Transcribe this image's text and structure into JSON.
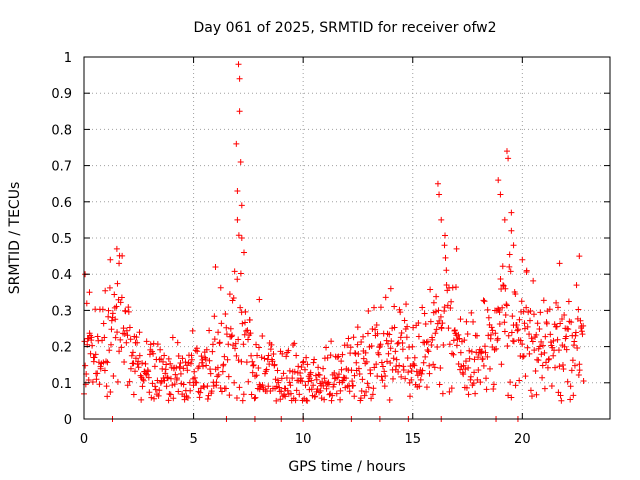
{
  "chart_data": {
    "type": "scatter",
    "title": "Day 061 of 2025, SRMTID for receiver ofw2",
    "xlabel": "GPS time / hours",
    "ylabel": "SRMTID / TECUs",
    "xlim": [
      0,
      24
    ],
    "ylim": [
      0,
      1
    ],
    "xticks": [
      "0",
      "5",
      "10",
      "15",
      "20"
    ],
    "xtick_values": [
      0,
      5,
      10,
      15,
      20
    ],
    "yticks": [
      "0",
      "0.1",
      "0.2",
      "0.3",
      "0.4",
      "0.5",
      "0.6",
      "0.7",
      "0.8",
      "0.9",
      "1"
    ],
    "ytick_values": [
      0,
      0.1,
      0.2,
      0.3,
      0.4,
      0.5,
      0.6,
      0.7,
      0.8,
      0.9,
      1
    ],
    "grid": true,
    "marker": "+",
    "color": "#ff0000",
    "envelope": [
      [
        0.0,
        0.2,
        0.06
      ],
      [
        0.25,
        0.18,
        0.06
      ],
      [
        0.5,
        0.17,
        0.06
      ],
      [
        0.75,
        0.18,
        0.06
      ],
      [
        1.0,
        0.2,
        0.07
      ],
      [
        1.25,
        0.27,
        0.08
      ],
      [
        1.5,
        0.33,
        0.09
      ],
      [
        1.75,
        0.28,
        0.08
      ],
      [
        2.0,
        0.2,
        0.06
      ],
      [
        2.5,
        0.16,
        0.05
      ],
      [
        3.0,
        0.13,
        0.05
      ],
      [
        3.5,
        0.12,
        0.05
      ],
      [
        4.0,
        0.12,
        0.05
      ],
      [
        4.5,
        0.11,
        0.05
      ],
      [
        5.0,
        0.11,
        0.05
      ],
      [
        5.5,
        0.13,
        0.06
      ],
      [
        6.0,
        0.17,
        0.07
      ],
      [
        6.5,
        0.2,
        0.08
      ],
      [
        6.8,
        0.25,
        0.1
      ],
      [
        7.0,
        0.3,
        0.12
      ],
      [
        7.3,
        0.22,
        0.09
      ],
      [
        7.6,
        0.15,
        0.06
      ],
      [
        8.0,
        0.13,
        0.05
      ],
      [
        8.5,
        0.12,
        0.05
      ],
      [
        9.0,
        0.11,
        0.05
      ],
      [
        9.5,
        0.11,
        0.04
      ],
      [
        10.0,
        0.12,
        0.04
      ],
      [
        10.5,
        0.1,
        0.04
      ],
      [
        11.0,
        0.11,
        0.04
      ],
      [
        11.5,
        0.12,
        0.05
      ],
      [
        12.0,
        0.13,
        0.05
      ],
      [
        12.5,
        0.14,
        0.05
      ],
      [
        13.0,
        0.16,
        0.06
      ],
      [
        13.5,
        0.2,
        0.07
      ],
      [
        14.0,
        0.19,
        0.07
      ],
      [
        14.5,
        0.17,
        0.06
      ],
      [
        15.0,
        0.16,
        0.06
      ],
      [
        15.5,
        0.18,
        0.06
      ],
      [
        16.0,
        0.22,
        0.08
      ],
      [
        16.3,
        0.3,
        0.1
      ],
      [
        16.6,
        0.28,
        0.1
      ],
      [
        17.0,
        0.24,
        0.09
      ],
      [
        17.5,
        0.19,
        0.07
      ],
      [
        18.0,
        0.17,
        0.06
      ],
      [
        18.5,
        0.19,
        0.07
      ],
      [
        19.0,
        0.27,
        0.1
      ],
      [
        19.3,
        0.32,
        0.12
      ],
      [
        19.6,
        0.28,
        0.1
      ],
      [
        20.0,
        0.24,
        0.08
      ],
      [
        20.5,
        0.21,
        0.07
      ],
      [
        21.0,
        0.2,
        0.07
      ],
      [
        21.5,
        0.19,
        0.07
      ],
      [
        22.0,
        0.18,
        0.07
      ],
      [
        22.5,
        0.2,
        0.07
      ],
      [
        22.8,
        0.2,
        0.07
      ]
    ],
    "peaks": [
      [
        0.05,
        0.4
      ],
      [
        0.25,
        0.35
      ],
      [
        1.2,
        0.44
      ],
      [
        1.5,
        0.47
      ],
      [
        1.6,
        0.43
      ],
      [
        6.0,
        0.42
      ],
      [
        6.95,
        0.76
      ],
      [
        7.05,
        0.98
      ],
      [
        7.1,
        0.94
      ],
      [
        7.1,
        0.85
      ],
      [
        7.15,
        0.71
      ],
      [
        7.0,
        0.63
      ],
      [
        7.2,
        0.59
      ],
      [
        7.0,
        0.55
      ],
      [
        7.2,
        0.5
      ],
      [
        7.3,
        0.46
      ],
      [
        8.0,
        0.33
      ],
      [
        14.0,
        0.36
      ],
      [
        16.15,
        0.65
      ],
      [
        16.2,
        0.62
      ],
      [
        16.3,
        0.55
      ],
      [
        16.45,
        0.48
      ],
      [
        17.0,
        0.47
      ],
      [
        18.9,
        0.66
      ],
      [
        19.0,
        0.62
      ],
      [
        19.3,
        0.74
      ],
      [
        19.35,
        0.72
      ],
      [
        19.5,
        0.57
      ],
      [
        19.2,
        0.55
      ],
      [
        19.5,
        0.52
      ],
      [
        19.6,
        0.48
      ],
      [
        20.0,
        0.44
      ],
      [
        20.2,
        0.41
      ],
      [
        21.7,
        0.43
      ],
      [
        22.6,
        0.45
      ]
    ],
    "bottom_marks": [
      1.3,
      6.5,
      7.8,
      9.0,
      10.0,
      12.2,
      13.5,
      14.8,
      16.3,
      18.8,
      19.8
    ]
  }
}
